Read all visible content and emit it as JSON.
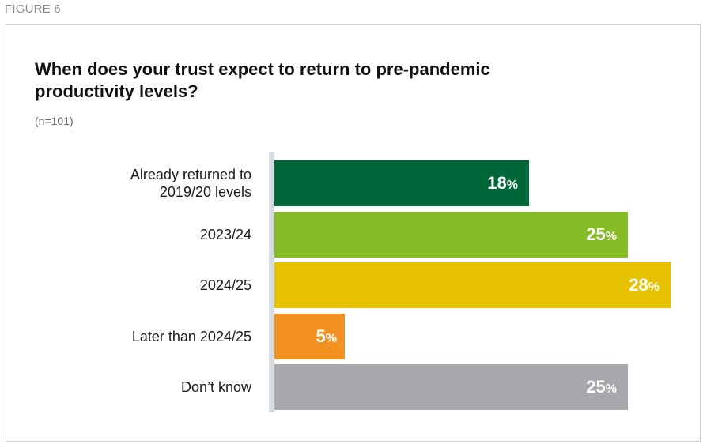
{
  "figure_label": "FIGURE 6",
  "chart_data": {
    "type": "bar",
    "orientation": "horizontal",
    "title": "When does your trust expect to return to pre-pandemic productivity levels?",
    "subtitle": "(n=101)",
    "categories": [
      "Already returned to 2019/20 levels",
      "2023/24",
      "2024/25",
      "Later than 2024/25",
      "Don’t know"
    ],
    "category_lines": [
      [
        "Already returned to",
        "2019/20 levels"
      ],
      [
        "2023/24"
      ],
      [
        "2024/25"
      ],
      [
        "Later than 2024/25"
      ],
      [
        "Don’t know"
      ]
    ],
    "values": [
      18,
      25,
      28,
      5,
      25
    ],
    "value_unit": "%",
    "colors": [
      "#006838",
      "#86bc25",
      "#e6c100",
      "#f29222",
      "#a7a9ac"
    ],
    "xlim": [
      0,
      28
    ],
    "grid": false,
    "legend": "none"
  }
}
